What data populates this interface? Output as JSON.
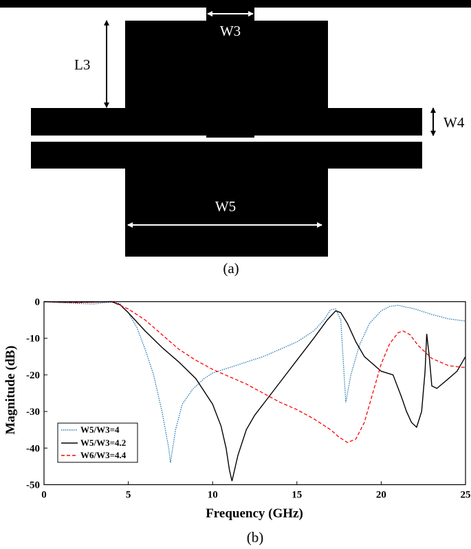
{
  "layout_figure": {
    "dimension_labels": {
      "w3": "W3",
      "l3": "L3",
      "w4": "W4",
      "w5": "W5"
    },
    "caption": "(a)"
  },
  "plot_figure": {
    "caption": "(b)"
  },
  "colors": {
    "metal": "#000000",
    "arrow_light": "#ffffff",
    "arrow_dark": "#000000",
    "series_dotted": "#1f77b4",
    "series_solid": "#000000",
    "series_dashed": "#ff0000"
  },
  "chart_data": {
    "type": "line",
    "xlabel": "Frequency (GHz)",
    "ylabel": "Magnitude (dB)",
    "xlim": [
      0,
      25
    ],
    "ylim": [
      -50,
      0
    ],
    "xticks": [
      0,
      5,
      10,
      15,
      20,
      25
    ],
    "yticks": [
      0,
      -10,
      -20,
      -30,
      -40,
      -50
    ],
    "grid": false,
    "legend_position": "bottom-left",
    "series": [
      {
        "name": "W5/W3=4",
        "style": "dotted",
        "points": [
          [
            0,
            0
          ],
          [
            1,
            -0.3
          ],
          [
            2,
            -0.5
          ],
          [
            3,
            -0.6
          ],
          [
            3.5,
            -0.3
          ],
          [
            4,
            -0.1
          ],
          [
            4.5,
            -0.5
          ],
          [
            5,
            -3
          ],
          [
            5.5,
            -7
          ],
          [
            6,
            -13
          ],
          [
            6.5,
            -20
          ],
          [
            7,
            -30
          ],
          [
            7.4,
            -40
          ],
          [
            7.5,
            -44
          ],
          [
            7.8,
            -35
          ],
          [
            8.2,
            -28
          ],
          [
            8.8,
            -24
          ],
          [
            9.5,
            -21
          ],
          [
            10,
            -19.5
          ],
          [
            11,
            -18
          ],
          [
            12,
            -16.5
          ],
          [
            13,
            -15
          ],
          [
            14,
            -13
          ],
          [
            15,
            -11
          ],
          [
            16,
            -8
          ],
          [
            16.6,
            -5
          ],
          [
            17,
            -2.2
          ],
          [
            17.3,
            -2
          ],
          [
            17.6,
            -5
          ],
          [
            17.9,
            -27.5
          ],
          [
            18.2,
            -20
          ],
          [
            18.7,
            -12
          ],
          [
            19.3,
            -6
          ],
          [
            20,
            -2.5
          ],
          [
            20.5,
            -1.3
          ],
          [
            21,
            -1
          ],
          [
            22,
            -2
          ],
          [
            23,
            -3.5
          ],
          [
            24,
            -4.7
          ],
          [
            25,
            -5.3
          ]
        ]
      },
      {
        "name": "W5/W3=4.2",
        "style": "solid",
        "points": [
          [
            0,
            0
          ],
          [
            1,
            -0.1
          ],
          [
            2,
            -0.2
          ],
          [
            3,
            -0.1
          ],
          [
            4,
            0
          ],
          [
            4.5,
            -0.8
          ],
          [
            5,
            -3
          ],
          [
            6,
            -8
          ],
          [
            7,
            -12.5
          ],
          [
            8,
            -16.5
          ],
          [
            9,
            -21
          ],
          [
            10,
            -28
          ],
          [
            10.5,
            -34
          ],
          [
            10.8,
            -40
          ],
          [
            11,
            -46
          ],
          [
            11.15,
            -49
          ],
          [
            11.5,
            -42
          ],
          [
            12,
            -35
          ],
          [
            12.5,
            -31
          ],
          [
            13,
            -28
          ],
          [
            14,
            -22
          ],
          [
            15,
            -16
          ],
          [
            16,
            -10
          ],
          [
            16.8,
            -5
          ],
          [
            17.3,
            -2.5
          ],
          [
            17.6,
            -3
          ],
          [
            18,
            -6
          ],
          [
            18.5,
            -11
          ],
          [
            19,
            -15
          ],
          [
            20,
            -19
          ],
          [
            20.7,
            -20
          ],
          [
            21.2,
            -26
          ],
          [
            21.5,
            -30
          ],
          [
            21.8,
            -33
          ],
          [
            22.1,
            -34.3
          ],
          [
            22.4,
            -30
          ],
          [
            22.6,
            -19
          ],
          [
            22.7,
            -8.8
          ],
          [
            22.85,
            -15
          ],
          [
            23,
            -23
          ],
          [
            23.3,
            -23.7
          ],
          [
            24,
            -21
          ],
          [
            24.5,
            -19
          ],
          [
            25,
            -15
          ]
        ]
      },
      {
        "name": "W6/W3=4.4",
        "style": "dashed",
        "points": [
          [
            0,
            0
          ],
          [
            1,
            -0.1
          ],
          [
            2,
            -0.2
          ],
          [
            3,
            -0.1
          ],
          [
            4,
            0
          ],
          [
            5,
            -2
          ],
          [
            6,
            -5
          ],
          [
            7,
            -9
          ],
          [
            8,
            -13
          ],
          [
            9,
            -16
          ],
          [
            10,
            -18.5
          ],
          [
            11,
            -20.5
          ],
          [
            12,
            -22.5
          ],
          [
            13,
            -25
          ],
          [
            14,
            -27.5
          ],
          [
            15,
            -29.5
          ],
          [
            16,
            -32
          ],
          [
            17,
            -35
          ],
          [
            17.5,
            -37
          ],
          [
            18,
            -38.5
          ],
          [
            18.5,
            -37.5
          ],
          [
            19,
            -33
          ],
          [
            19.5,
            -25
          ],
          [
            20,
            -17
          ],
          [
            20.5,
            -11.5
          ],
          [
            21,
            -8.5
          ],
          [
            21.3,
            -8
          ],
          [
            21.7,
            -9
          ],
          [
            22.2,
            -12
          ],
          [
            23,
            -15.5
          ],
          [
            24,
            -17.5
          ],
          [
            25,
            -18
          ]
        ]
      }
    ]
  }
}
